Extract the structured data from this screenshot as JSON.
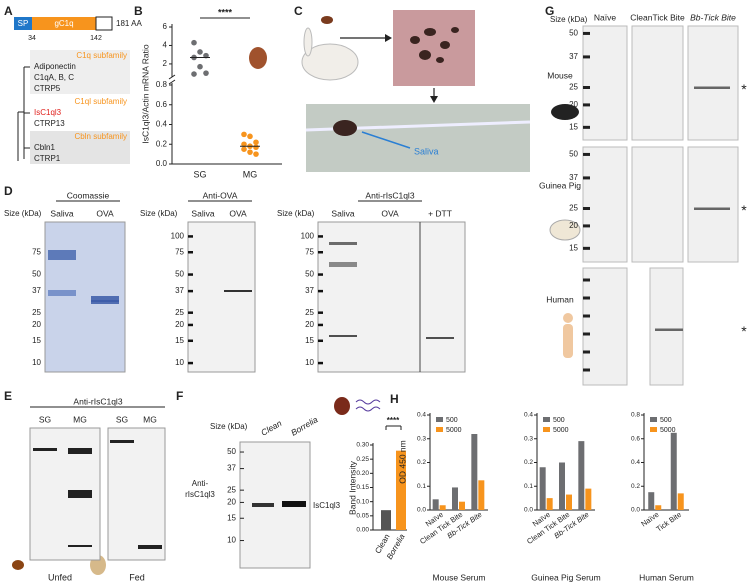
{
  "panel_labels": [
    "A",
    "B",
    "C",
    "D",
    "E",
    "F",
    "G",
    "H"
  ],
  "panel_a": {
    "domains": [
      "SP",
      "gC1q"
    ],
    "length": "181 AA",
    "positions": [
      "34",
      "142"
    ],
    "groups": [
      {
        "name": "C1q subfamily",
        "members": [
          "Adiponectin",
          "C1qA, B, C",
          "CTRP5"
        ]
      },
      {
        "name": "C1ql subfamily",
        "members": [
          "IsC1ql3",
          "CTRP13"
        ]
      },
      {
        "name": "Cbln subfamily",
        "members": [
          "Cbln1",
          "CTRP1"
        ]
      }
    ]
  },
  "panel_b": {
    "y_label": "IsC1ql3/Actin mRNA Ratio",
    "significance": "****",
    "categories": [
      "SG",
      "MG"
    ],
    "colors": [
      "#6d6e71",
      "#f7941d"
    ],
    "values": [
      [
        4.3,
        3.3,
        2.9,
        2.7,
        1.7,
        1.0,
        0.9
      ],
      [
        0.3,
        0.28,
        0.22,
        0.2,
        0.18,
        0.17,
        0.15,
        0.12,
        0.1
      ]
    ],
    "medians": [
      2.7,
      0.18
    ],
    "ylim_upper": [
      0.8,
      6
    ],
    "yticks_upper": [
      2,
      4,
      6
    ],
    "ylim_lower": [
      0,
      0.8
    ],
    "yticks_lower": [
      {
        "value": 0,
        "label": "0.0"
      },
      {
        "value": 0.2,
        "label": "0.2"
      },
      {
        "value": 0.4,
        "label": "0.4"
      },
      {
        "value": 0.6,
        "label": "0.6"
      },
      {
        "value": 0.8,
        "label": "0.8"
      }
    ]
  },
  "panel_c": {
    "label": "Saliva"
  },
  "panel_d": {
    "size_label": "Size (kDa)",
    "blots": [
      {
        "title": "Coomassie",
        "lanes": [
          "Saliva",
          "OVA"
        ],
        "sizes": [
          75,
          50,
          37,
          25,
          20,
          15,
          10
        ]
      },
      {
        "title": "Anti-OVA",
        "lanes": [
          "Saliva",
          "OVA"
        ],
        "sizes": [
          100,
          75,
          50,
          37,
          25,
          20,
          15,
          10
        ]
      },
      {
        "title": "Anti-rIsC1ql3",
        "lanes": [
          "Saliva",
          "OVA",
          "+ DTT"
        ],
        "sizes": [
          100,
          75,
          50,
          37,
          25,
          20,
          15,
          10
        ]
      }
    ]
  },
  "panel_e": {
    "title": "Anti-rIsC1ql3",
    "blots": [
      {
        "lanes": [
          "SG",
          "MG"
        ],
        "condition": "Unfed"
      },
      {
        "lanes": [
          "SG",
          "MG"
        ],
        "condition": "Fed"
      }
    ]
  },
  "panel_f": {
    "size_label": "Size (kDa)",
    "lanes": [
      "Clean",
      "Borrelia"
    ],
    "sizes": [
      50,
      37,
      25,
      20,
      15,
      10
    ],
    "antibody": [
      "Anti-",
      "rIsC1ql3"
    ],
    "band_label": "IsC1ql3",
    "chart": {
      "y_label": "Band Intensity",
      "categories": [
        "Clean",
        "Borrelia"
      ],
      "values": [
        0.07,
        0.28
      ],
      "colors": [
        "#555555",
        "#f7941d"
      ],
      "ylim": [
        0,
        0.3
      ],
      "yticks": [
        {
          "value": 0,
          "label": "0.00"
        },
        {
          "value": 0.05,
          "label": "0.05"
        },
        {
          "value": 0.1,
          "label": "0.10"
        },
        {
          "value": 0.15,
          "label": "0.15"
        },
        {
          "value": 0.2,
          "label": "0.20"
        },
        {
          "value": 0.25,
          "label": "0.25"
        },
        {
          "value": 0.3,
          "label": "0.30"
        }
      ],
      "significance": "****"
    }
  },
  "panel_g": {
    "size_label": "Size (kDa)",
    "columns": [
      "Naïve",
      "CleanTick Bite",
      "Bb-Tick Bite"
    ],
    "rows": [
      {
        "species": "Mouse",
        "sizes": [
          50,
          37,
          25,
          20,
          15
        ],
        "marker": "*"
      },
      {
        "species": "Guinea Pig",
        "sizes": [
          50,
          37,
          25,
          20,
          15
        ],
        "marker": "*"
      },
      {
        "species": "Human",
        "marker": "*"
      }
    ]
  },
  "panel_h": {
    "y_label": "OD 450 nm",
    "charts": [
      {
        "title": "Mouse Serum",
        "categories": [
          "Naïve",
          "Clean Tick Bite",
          "Bb-Tick Bite"
        ],
        "series": [
          {
            "name": "500",
            "color": "#6d6e71",
            "values": [
              0.045,
              0.095,
              0.32
            ]
          },
          {
            "name": "5000",
            "color": "#f7941d",
            "values": [
              0.02,
              0.035,
              0.125
            ]
          }
        ],
        "ylim": [
          0,
          0.4
        ],
        "yticks": [
          {
            "value": 0,
            "label": "0.0"
          },
          {
            "value": 0.1,
            "label": "0.1"
          },
          {
            "value": 0.2,
            "label": "0.2"
          },
          {
            "value": 0.3,
            "label": "0.3"
          },
          {
            "value": 0.4,
            "label": "0.4"
          }
        ]
      },
      {
        "title": "Guinea Pig Serum",
        "categories": [
          "Naïve",
          "Clean Tick Bite",
          "Bb-Tick Bite"
        ],
        "series": [
          {
            "name": "500",
            "color": "#6d6e71",
            "values": [
              0.18,
              0.2,
              0.29
            ]
          },
          {
            "name": "5000",
            "color": "#f7941d",
            "values": [
              0.05,
              0.065,
              0.09
            ]
          }
        ],
        "ylim": [
          0,
          0.4
        ],
        "yticks": [
          {
            "value": 0,
            "label": "0.0"
          },
          {
            "value": 0.1,
            "label": "0.1"
          },
          {
            "value": 0.2,
            "label": "0.2"
          },
          {
            "value": 0.3,
            "label": "0.3"
          },
          {
            "value": 0.4,
            "label": "0.4"
          }
        ]
      },
      {
        "title": "Human Serum",
        "categories": [
          "Naïve",
          "Tick Bite"
        ],
        "series": [
          {
            "name": "500",
            "color": "#6d6e71",
            "values": [
              0.15,
              0.65
            ]
          },
          {
            "name": "5000",
            "color": "#f7941d",
            "values": [
              0.04,
              0.14
            ]
          }
        ],
        "ylim": [
          0,
          0.8
        ],
        "yticks": [
          {
            "value": 0,
            "label": "0.0"
          },
          {
            "value": 0.2,
            "label": "0.2"
          },
          {
            "value": 0.4,
            "label": "0.4"
          },
          {
            "value": 0.6,
            "label": "0.6"
          },
          {
            "value": 0.8,
            "label": "0.8"
          }
        ]
      }
    ]
  }
}
